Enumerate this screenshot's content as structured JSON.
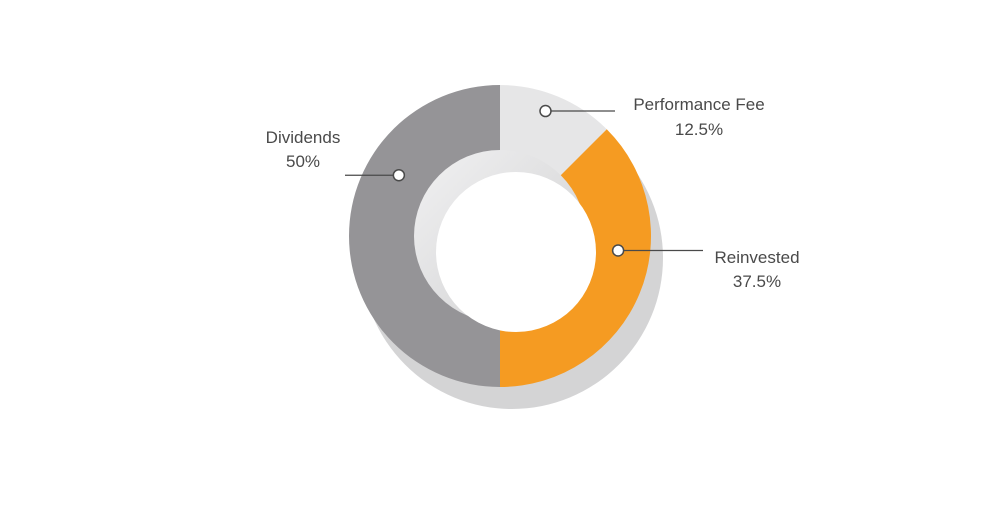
{
  "chart_data": {
    "type": "pie",
    "style": "donut",
    "categories": [
      "Performance Fee",
      "Reinvested",
      "Dividends"
    ],
    "values": [
      12.5,
      37.5,
      50
    ],
    "value_labels": [
      "12.5%",
      "37.5%",
      "50%"
    ],
    "colors": [
      "#e6e6e7",
      "#f59b22",
      "#959497"
    ],
    "shadow_color": "#d4d4d5",
    "leader_color": "#4a4a4a",
    "title": "",
    "legend": "none"
  }
}
